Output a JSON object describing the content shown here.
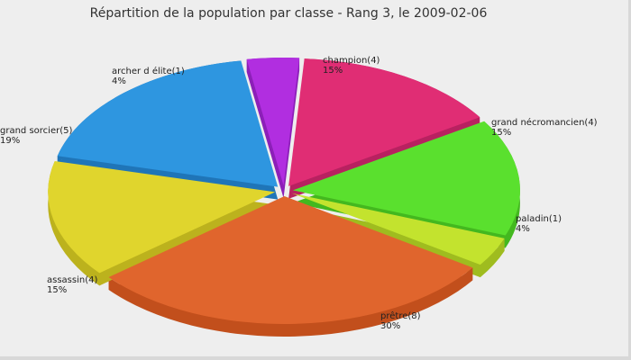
{
  "chart_data": {
    "type": "pie",
    "title": "Répartition de la population par classe - Rang 3, le 2009-02-06",
    "slices": [
      {
        "name": "champion(4)",
        "pct": "15%",
        "value": 4,
        "color": "#e02d74",
        "side": "#b82160"
      },
      {
        "name": "grand nécromancien(4)",
        "pct": "15%",
        "value": 4,
        "color": "#5ae02e",
        "side": "#43b81f"
      },
      {
        "name": "paladin(1)",
        "pct": "4%",
        "value": 1,
        "color": "#c3e32e",
        "side": "#9fbc1f"
      },
      {
        "name": "prêtre(8)",
        "pct": "30%",
        "value": 8,
        "color": "#e0652d",
        "side": "#c24f1c"
      },
      {
        "name": "assassin(4)",
        "pct": "15%",
        "value": 4,
        "color": "#e0d52d",
        "side": "#bcb21d"
      },
      {
        "name": "grand sorcier(5)",
        "pct": "19%",
        "value": 5,
        "color": "#2e96e0",
        "side": "#1f75b8"
      },
      {
        "name": "archer d élite(1)",
        "pct": "4%",
        "value": 1,
        "color": "#b12ee0",
        "side": "#8c1fb8"
      }
    ]
  }
}
